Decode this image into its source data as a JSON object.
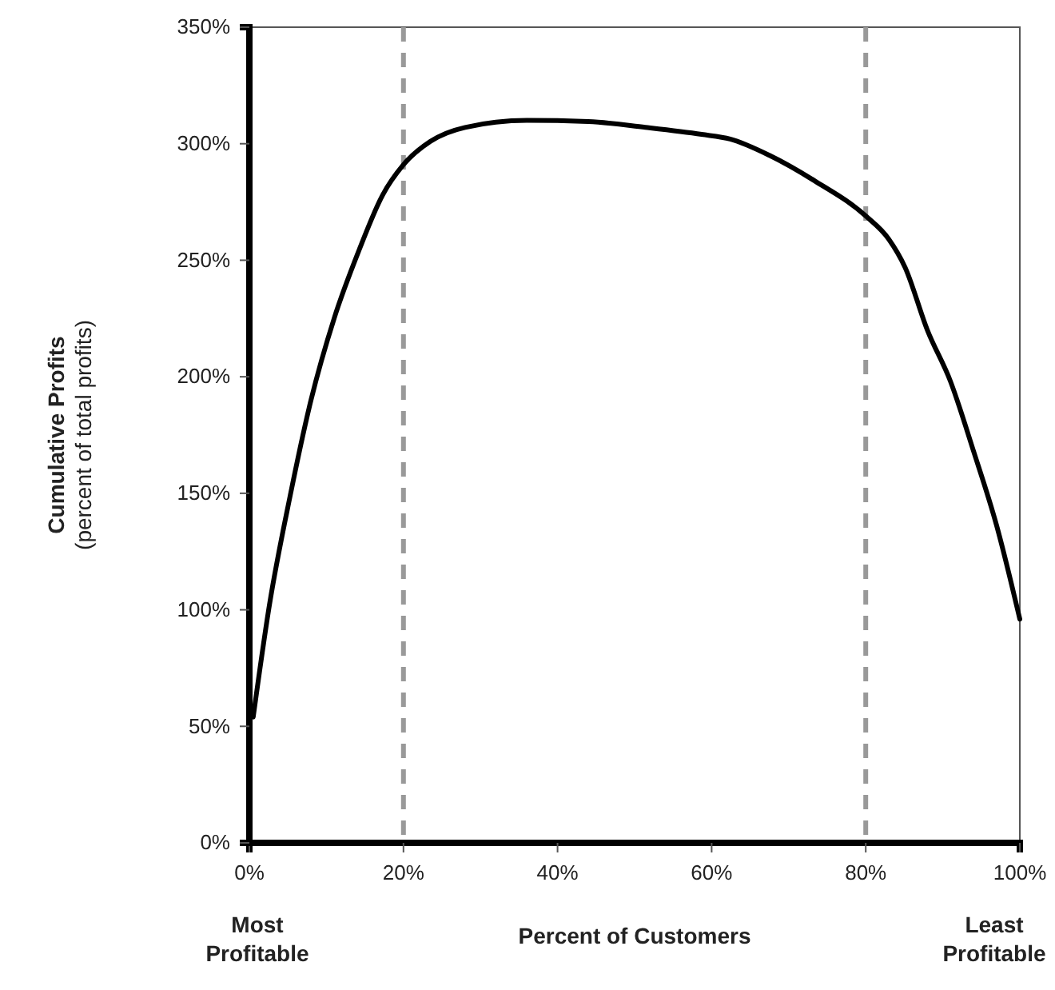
{
  "chart_data": {
    "type": "line",
    "xlabel": "Percent of Customers",
    "ylabel": "Cumulative Profits\n(percent of total profits)",
    "x": [
      0.5,
      2.6,
      5.3,
      8,
      11,
      14.2,
      17.3,
      20,
      23.5,
      28,
      36,
      44,
      51.4,
      58.7,
      62.4,
      67.5,
      73.4,
      80,
      83,
      85.1,
      88,
      91,
      94,
      97,
      100
    ],
    "series": [
      {
        "color": "#000000",
        "values": [
          54,
          102,
          149,
          190,
          225,
          254,
          278,
          291,
          301,
          307,
          310,
          309.5,
          307,
          304,
          302,
          295,
          284,
          269,
          259,
          247,
          220,
          198,
          168,
          136,
          96
        ]
      }
    ],
    "xlim": [
      0,
      100
    ],
    "ylim": [
      0,
      350
    ],
    "xticks": [
      {
        "value": 0,
        "label": "0%"
      },
      {
        "value": 20,
        "label": "20%"
      },
      {
        "value": 40,
        "label": "40%"
      },
      {
        "value": 60,
        "label": "60%"
      },
      {
        "value": 80,
        "label": "80%"
      },
      {
        "value": 100,
        "label": "100%"
      }
    ],
    "yticks": [
      {
        "value": 0,
        "label": "0%"
      },
      {
        "value": 50,
        "label": "50%"
      },
      {
        "value": 100,
        "label": "100%"
      },
      {
        "value": 150,
        "label": "150%"
      },
      {
        "value": 200,
        "label": "200%"
      },
      {
        "value": 250,
        "label": "250%"
      },
      {
        "value": 300,
        "label": "300%"
      },
      {
        "value": 350,
        "label": "350%"
      }
    ],
    "ref_lines": [
      {
        "axis": "x",
        "value": 20,
        "color": "#999999",
        "line_style": "dashed"
      },
      {
        "axis": "x",
        "value": 80,
        "color": "#999999",
        "line_style": "dashed"
      }
    ],
    "annotations": [
      "Most Profitable",
      "Least Profitable"
    ],
    "marker": "none",
    "line_style": "solid",
    "grid": false
  }
}
